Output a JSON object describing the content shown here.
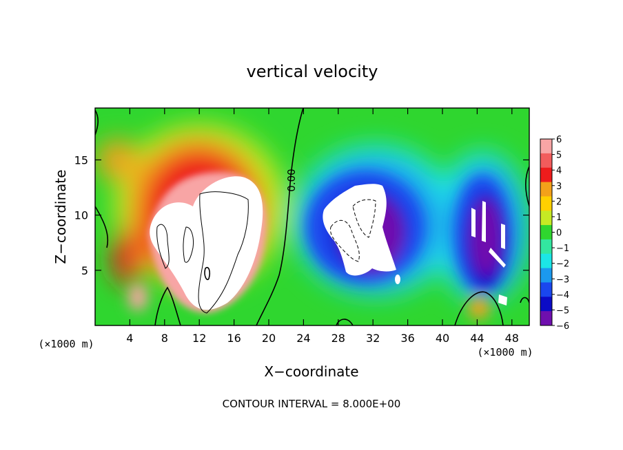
{
  "chart_data": {
    "type": "heatmap",
    "title": "vertical velocity",
    "xlabel": "X−coordinate",
    "ylabel": "Z−coordinate",
    "x_unit_left": "(×1000 m)",
    "x_unit_right": "(×1000 m)",
    "xlim": [
      0,
      50
    ],
    "ylim": [
      0,
      19.7
    ],
    "xticks": [
      4,
      8,
      12,
      16,
      20,
      24,
      28,
      32,
      36,
      40,
      44,
      48
    ],
    "xtick_labels": [
      "4",
      "8",
      "12",
      "16",
      "20",
      "24",
      "28",
      "32",
      "36",
      "40",
      "44",
      "48"
    ],
    "yticks": [
      5,
      10,
      15
    ],
    "ytick_labels": [
      "5",
      "10",
      "15"
    ],
    "colorbar": {
      "levels": [
        6,
        5,
        4,
        3,
        2,
        1,
        0,
        -1,
        -2,
        -3,
        -4,
        -5,
        -6
      ],
      "labels": [
        "6",
        "5",
        "4",
        "3",
        "2",
        "1",
        "0",
        "−1",
        "−2",
        "−3",
        "−4",
        "−5",
        "−6"
      ],
      "colors": [
        "#f8a5a5",
        "#f25c5c",
        "#ee1c1c",
        "#f3a11a",
        "#ffd000",
        "#c6ea24",
        "#2fd62f",
        "#33e7a0",
        "#1ce6e6",
        "#1b99ee",
        "#1a47ee",
        "#0b0bc6",
        "#6f0fae"
      ]
    },
    "contour_label": "0.00",
    "contour_interval_label": "CONTOUR INTERVAL = 8.000E+00",
    "features": [
      {
        "name": "updraft core",
        "x": 13.0,
        "z": 8.5,
        "sign": "positive"
      },
      {
        "name": "downdraft core",
        "x": 31.0,
        "z": 9.0,
        "sign": "negative"
      },
      {
        "name": "downdraft bands",
        "x": 45.0,
        "z": 8.0,
        "sign": "negative"
      }
    ]
  }
}
